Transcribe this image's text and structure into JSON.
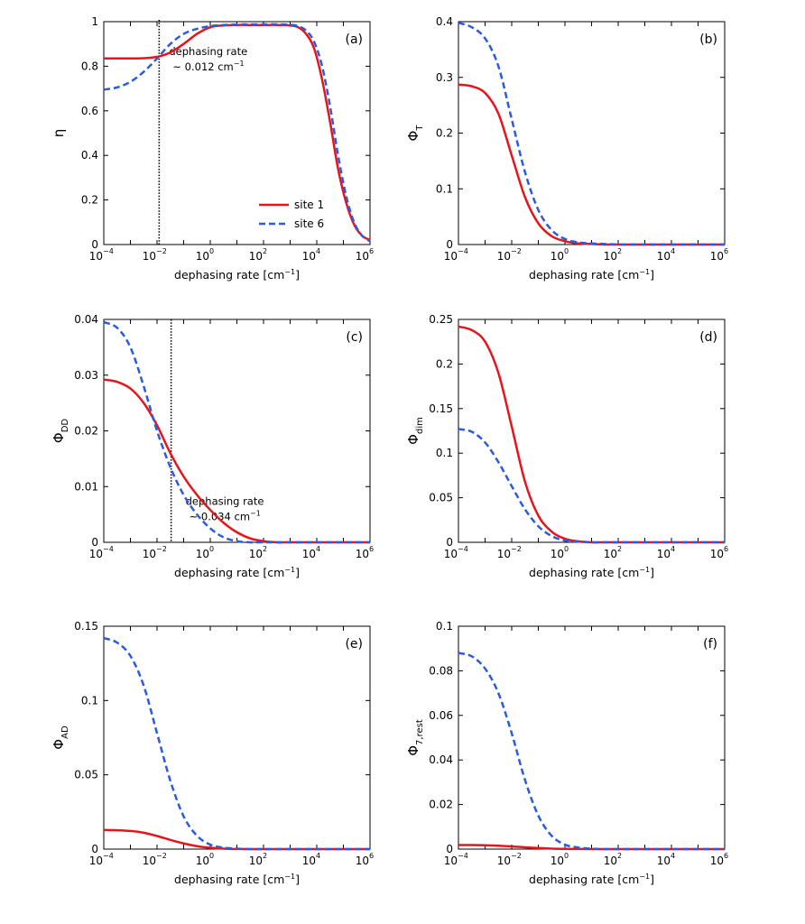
{
  "colors": {
    "site1": "#e8141b",
    "site6": "#2b5be2"
  },
  "xtick_labels": [
    "10",
    "10",
    "10",
    "10",
    "10",
    "10"
  ],
  "xtick_exponents": [
    "−4",
    "−2",
    "0",
    "2",
    "4",
    "6"
  ],
  "chart_data": [
    {
      "type": "line",
      "id": "a",
      "panel_label": "(a)",
      "xlabel_text": "dephasing rate [cm",
      "xlabel_exp": "−1",
      "xlabel_close": "]",
      "ylabel_main": "η",
      "ylabel_sub": "",
      "xscale": "log10",
      "xlim": [
        -4,
        6
      ],
      "ylim": [
        0,
        1
      ],
      "yticks": [
        0,
        0.2,
        0.4,
        0.6,
        0.8,
        1
      ],
      "ytick_labels": [
        "0",
        "0.2",
        "0.4",
        "0.6",
        "0.8",
        "1"
      ],
      "legend": {
        "position": "middle-right",
        "entries": [
          "site 1",
          "site 6"
        ]
      },
      "annotation": {
        "vline_log10x": -1.92,
        "line1": "dephasing rate",
        "line2_pre": "~ 0.012 cm",
        "line2_exp": "−1"
      },
      "series": [
        {
          "name": "site 1",
          "style": "solid",
          "log10_x": [
            -4,
            -3,
            -2.5,
            -2,
            -1.5,
            -1,
            -0.5,
            0,
            0.5,
            1,
            1.5,
            2,
            2.5,
            3,
            3.3,
            3.6,
            3.9,
            4.2,
            4.5,
            4.8,
            5.1,
            5.4,
            5.7,
            6
          ],
          "y": [
            0.835,
            0.835,
            0.836,
            0.842,
            0.862,
            0.9,
            0.945,
            0.975,
            0.983,
            0.985,
            0.985,
            0.985,
            0.985,
            0.983,
            0.975,
            0.945,
            0.88,
            0.74,
            0.55,
            0.34,
            0.19,
            0.09,
            0.04,
            0.02
          ]
        },
        {
          "name": "site 6",
          "style": "dashed",
          "log10_x": [
            -4,
            -3.5,
            -3,
            -2.5,
            -2,
            -1.5,
            -1,
            -0.5,
            0,
            0.5,
            1,
            1.5,
            2,
            2.5,
            3,
            3.3,
            3.6,
            3.9,
            4.2,
            4.5,
            4.8,
            5.1,
            5.4,
            5.7,
            6
          ],
          "y": [
            0.695,
            0.705,
            0.73,
            0.775,
            0.835,
            0.9,
            0.945,
            0.968,
            0.98,
            0.985,
            0.987,
            0.988,
            0.988,
            0.988,
            0.986,
            0.98,
            0.96,
            0.91,
            0.8,
            0.62,
            0.4,
            0.22,
            0.1,
            0.04,
            0.015
          ]
        }
      ]
    },
    {
      "type": "line",
      "id": "b",
      "panel_label": "(b)",
      "xlabel_text": "dephasing rate [cm",
      "xlabel_exp": "−1",
      "xlabel_close": "]",
      "ylabel_main": "Φ",
      "ylabel_sub": "T",
      "xscale": "log10",
      "xlim": [
        -4,
        6
      ],
      "ylim": [
        0,
        0.4
      ],
      "yticks": [
        0,
        0.1,
        0.2,
        0.3,
        0.4
      ],
      "ytick_labels": [
        "0",
        "0.1",
        "0.2",
        "0.3",
        "0.4"
      ],
      "series": [
        {
          "name": "site 1",
          "style": "solid",
          "log10_x": [
            -4,
            -3.5,
            -3,
            -2.5,
            -2,
            -1.5,
            -1,
            -0.5,
            0,
            0.5,
            1,
            1.5,
            2,
            3,
            4,
            5,
            6
          ],
          "y": [
            0.287,
            0.284,
            0.272,
            0.235,
            0.16,
            0.085,
            0.038,
            0.015,
            0.006,
            0.002,
            0.001,
            0,
            0,
            0,
            0,
            0,
            0
          ]
        },
        {
          "name": "site 6",
          "style": "dashed",
          "log10_x": [
            -4,
            -3.5,
            -3,
            -2.5,
            -2,
            -1.5,
            -1,
            -0.5,
            0,
            0.5,
            1,
            1.5,
            2,
            3,
            4,
            5,
            6
          ],
          "y": [
            0.398,
            0.39,
            0.37,
            0.32,
            0.225,
            0.13,
            0.062,
            0.026,
            0.01,
            0.004,
            0.002,
            0.001,
            0,
            0,
            0,
            0,
            0
          ]
        }
      ]
    },
    {
      "type": "line",
      "id": "c",
      "panel_label": "(c)",
      "xlabel_text": "dephasing rate [cm",
      "xlabel_exp": "−1",
      "xlabel_close": "]",
      "ylabel_main": "Φ",
      "ylabel_sub": "DD",
      "xscale": "log10",
      "xlim": [
        -4,
        6
      ],
      "ylim": [
        0,
        0.04
      ],
      "yticks": [
        0,
        0.01,
        0.02,
        0.03,
        0.04
      ],
      "ytick_labels": [
        "0",
        "0.01",
        "0.02",
        "0.03",
        "0.04"
      ],
      "annotation": {
        "vline_log10x": -1.47,
        "line1": "dephasing rate",
        "line2_pre": "~ 0.034 cm",
        "line2_exp": "−1"
      },
      "series": [
        {
          "name": "site 1",
          "style": "solid",
          "log10_x": [
            -4,
            -3.5,
            -3,
            -2.5,
            -2,
            -1.5,
            -1,
            -0.5,
            0,
            0.5,
            1,
            1.5,
            2,
            2.5,
            3,
            4,
            5,
            6
          ],
          "y": [
            0.0292,
            0.0288,
            0.0276,
            0.025,
            0.021,
            0.016,
            0.0118,
            0.0085,
            0.0058,
            0.0035,
            0.0018,
            0.0007,
            0.0002,
            0,
            0,
            0,
            0,
            0
          ]
        },
        {
          "name": "site 6",
          "style": "dashed",
          "log10_x": [
            -4,
            -3.5,
            -3,
            -2.5,
            -2,
            -1.5,
            -1,
            -0.5,
            0,
            0.5,
            1,
            1.5,
            2,
            3,
            4,
            5,
            6
          ],
          "y": [
            0.0395,
            0.0385,
            0.035,
            0.028,
            0.02,
            0.0135,
            0.0085,
            0.005,
            0.0025,
            0.0009,
            0.0002,
            0,
            0,
            0,
            0,
            0,
            0
          ]
        }
      ]
    },
    {
      "type": "line",
      "id": "d",
      "panel_label": "(d)",
      "xlabel_text": "dephasing rate [cm",
      "xlabel_exp": "−1",
      "xlabel_close": "]",
      "ylabel_main": "Φ",
      "ylabel_sub": "dim",
      "xscale": "log10",
      "xlim": [
        -4,
        6
      ],
      "ylim": [
        0,
        0.25
      ],
      "yticks": [
        0,
        0.05,
        0.1,
        0.15,
        0.2,
        0.25
      ],
      "ytick_labels": [
        "0",
        "0.05",
        "0.1",
        "0.15",
        "0.2",
        "0.25"
      ],
      "series": [
        {
          "name": "site 1",
          "style": "solid",
          "log10_x": [
            -4,
            -3.5,
            -3,
            -2.5,
            -2,
            -1.5,
            -1,
            -0.5,
            0,
            0.5,
            1,
            1.5,
            2,
            3,
            4,
            5,
            6
          ],
          "y": [
            0.242,
            0.238,
            0.225,
            0.19,
            0.13,
            0.068,
            0.03,
            0.012,
            0.004,
            0.001,
            0,
            0,
            0,
            0,
            0,
            0,
            0
          ]
        },
        {
          "name": "site 6",
          "style": "dashed",
          "log10_x": [
            -4,
            -3.5,
            -3,
            -2.5,
            -2,
            -1.5,
            -1,
            -0.5,
            0,
            0.5,
            1,
            1.5,
            2,
            3,
            4,
            5,
            6
          ],
          "y": [
            0.127,
            0.124,
            0.112,
            0.09,
            0.063,
            0.037,
            0.018,
            0.007,
            0.002,
            0.001,
            0,
            0,
            0,
            0,
            0,
            0,
            0
          ]
        }
      ]
    },
    {
      "type": "line",
      "id": "e",
      "panel_label": "(e)",
      "xlabel_text": "dephasing rate [cm",
      "xlabel_exp": "−1",
      "xlabel_close": "]",
      "ylabel_main": "Φ",
      "ylabel_sub": "AD",
      "xscale": "log10",
      "xlim": [
        -4,
        6
      ],
      "ylim": [
        0,
        0.15
      ],
      "yticks": [
        0,
        0.05,
        0.1,
        0.15
      ],
      "ytick_labels": [
        "0",
        "0.05",
        "0.1",
        "0.15"
      ],
      "series": [
        {
          "name": "site 1",
          "style": "solid",
          "log10_x": [
            -4,
            -3.5,
            -3,
            -2.5,
            -2,
            -1.5,
            -1,
            -0.5,
            0,
            0.5,
            1,
            2,
            3,
            4,
            5,
            6
          ],
          "y": [
            0.0128,
            0.0127,
            0.0122,
            0.011,
            0.0088,
            0.0062,
            0.0038,
            0.002,
            0.0009,
            0.0003,
            0.0001,
            0,
            0,
            0,
            0,
            0
          ]
        },
        {
          "name": "site 6",
          "style": "dashed",
          "log10_x": [
            -4,
            -3.5,
            -3,
            -2.5,
            -2,
            -1.5,
            -1,
            -0.5,
            0,
            0.5,
            1,
            1.5,
            2,
            3,
            4,
            5,
            6
          ],
          "y": [
            0.142,
            0.139,
            0.13,
            0.11,
            0.078,
            0.046,
            0.022,
            0.009,
            0.003,
            0.001,
            0.0003,
            0,
            0,
            0,
            0,
            0,
            0
          ]
        }
      ]
    },
    {
      "type": "line",
      "id": "f",
      "panel_label": "(f)",
      "xlabel_text": "dephasing rate [cm",
      "xlabel_exp": "−1",
      "xlabel_close": "]",
      "ylabel_main": "Φ",
      "ylabel_sub": "7,rest",
      "xscale": "log10",
      "xlim": [
        -4,
        6
      ],
      "ylim": [
        0,
        0.1
      ],
      "yticks": [
        0,
        0.02,
        0.04,
        0.06,
        0.08,
        0.1
      ],
      "ytick_labels": [
        "0",
        "0.02",
        "0.04",
        "0.06",
        "0.08",
        "0.1"
      ],
      "series": [
        {
          "name": "site 1",
          "style": "solid",
          "log10_x": [
            -4,
            -3.5,
            -3,
            -2.5,
            -2,
            -1.5,
            -1,
            -0.5,
            0,
            1,
            2,
            3,
            4,
            5,
            6
          ],
          "y": [
            0.0018,
            0.0018,
            0.0017,
            0.0015,
            0.0012,
            0.0008,
            0.0005,
            0.0002,
            0.0001,
            0,
            0,
            0,
            0,
            0,
            0
          ]
        },
        {
          "name": "site 6",
          "style": "dashed",
          "log10_x": [
            -4,
            -3.5,
            -3,
            -2.5,
            -2,
            -1.5,
            -1,
            -0.5,
            0,
            0.5,
            1,
            1.5,
            2,
            3,
            4,
            5,
            6
          ],
          "y": [
            0.088,
            0.0865,
            0.081,
            0.07,
            0.052,
            0.031,
            0.015,
            0.006,
            0.002,
            0.0007,
            0.0002,
            0,
            0,
            0,
            0,
            0,
            0
          ]
        }
      ]
    }
  ]
}
